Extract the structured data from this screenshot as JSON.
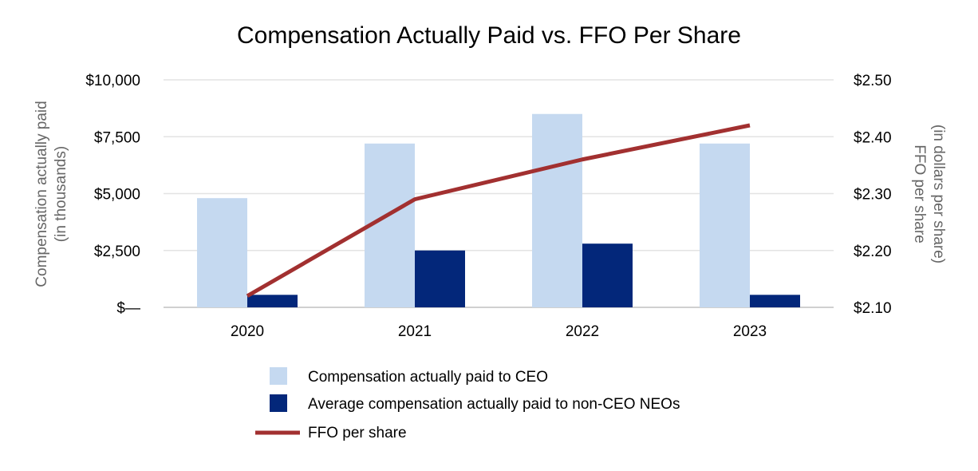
{
  "chart_data": {
    "type": "bar",
    "title": "Compensation Actually Paid vs. FFO Per Share",
    "categories": [
      "2020",
      "2021",
      "2022",
      "2023"
    ],
    "y_left": {
      "label_line1": "Compensation actually paid",
      "label_line2": "(in thousands)",
      "range": [
        0,
        10000
      ],
      "tick_labels": [
        "$—",
        "$2,500",
        "$5,000",
        "$7,500",
        "$10,000"
      ]
    },
    "y_right": {
      "label_line1": "FFO per share",
      "label_line2": "(in dollars per share)",
      "range": [
        2.1,
        2.5
      ],
      "tick_labels": [
        "$2.10",
        "$2.20",
        "$2.30",
        "$2.40",
        "$2.50"
      ]
    },
    "series": [
      {
        "name": "Compensation actually paid to CEO",
        "type": "bar",
        "axis": "left",
        "color": "#c5d9f0",
        "values": [
          4800,
          7200,
          8500,
          7200
        ]
      },
      {
        "name": "Average compensation actually paid to non-CEO NEOs",
        "type": "bar",
        "axis": "left",
        "color": "#03277a",
        "values": [
          550,
          2500,
          2800,
          550
        ]
      },
      {
        "name": "FFO per share",
        "type": "line",
        "axis": "right",
        "color": "#a23030",
        "values": [
          2.12,
          2.29,
          2.36,
          2.42
        ]
      }
    ],
    "legend_position": "bottom"
  }
}
